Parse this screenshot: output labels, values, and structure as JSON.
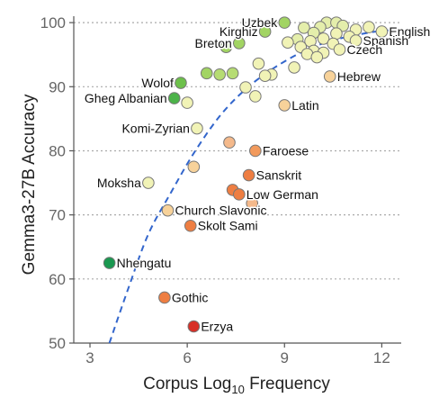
{
  "chart_data": {
    "type": "scatter",
    "title": "",
    "xlabel": "Corpus Log",
    "xlabel_sub": "10",
    "xlabel_suffix": " Frequency",
    "ylabel": "Gemma3-27B Accuracy",
    "xlim": [
      2.5,
      12.6
    ],
    "ylim": [
      50,
      101
    ],
    "xticks": [
      3,
      6,
      9,
      12
    ],
    "yticks": [
      50,
      60,
      70,
      80,
      90,
      100
    ],
    "grid": "horizontal dotted",
    "trend": {
      "style": "dashed",
      "color": "#3366cc",
      "points": [
        [
          3.6,
          50
        ],
        [
          4.2,
          58.8
        ],
        [
          4.8,
          67
        ],
        [
          5.5,
          73.5
        ],
        [
          6.2,
          79.6
        ],
        [
          7.0,
          85.4
        ],
        [
          7.8,
          89.6
        ],
        [
          8.7,
          93
        ],
        [
          9.7,
          95.8
        ],
        [
          10.7,
          97.5
        ],
        [
          11.8,
          98.6
        ],
        [
          12.2,
          98.8
        ]
      ]
    },
    "points": [
      {
        "x": 10.3,
        "y": 100,
        "color": "#e4eeab"
      },
      {
        "x": 10.6,
        "y": 100,
        "color": "#e4eeab"
      },
      {
        "x": 10.1,
        "y": 99.3,
        "color": "#e4eeab"
      },
      {
        "x": 10.8,
        "y": 99.5,
        "color": "#e4eeab"
      },
      {
        "x": 11.2,
        "y": 98.9,
        "color": "#f1f3b6"
      },
      {
        "x": 11.6,
        "y": 99.3,
        "color": "#f1f3b6"
      },
      {
        "x": 9.6,
        "y": 99.2,
        "color": "#e4eeab"
      },
      {
        "x": 9.9,
        "y": 98.4,
        "color": "#e4eeab"
      },
      {
        "x": 10.6,
        "y": 98.3,
        "color": "#f1f3b6"
      },
      {
        "x": 11.0,
        "y": 97.8,
        "color": "#f1f3b6"
      },
      {
        "x": 9.4,
        "y": 97.4,
        "color": "#e4eeab"
      },
      {
        "x": 9.8,
        "y": 97.1,
        "color": "#f1f3b6"
      },
      {
        "x": 10.2,
        "y": 97.5,
        "color": "#f1f3b6"
      },
      {
        "x": 10.5,
        "y": 96.7,
        "color": "#f1f3b6"
      },
      {
        "x": 9.1,
        "y": 96.9,
        "color": "#f1f3b6"
      },
      {
        "x": 9.5,
        "y": 96.2,
        "color": "#f1f3b6"
      },
      {
        "x": 9.9,
        "y": 95.6,
        "color": "#f1f3b6"
      },
      {
        "x": 10.2,
        "y": 95.3,
        "color": "#f1f3b6"
      },
      {
        "x": 9.7,
        "y": 95.1,
        "color": "#f1f3b6"
      },
      {
        "x": 10.0,
        "y": 94.6,
        "color": "#f1f3b6"
      },
      {
        "x": 8.2,
        "y": 93.6,
        "color": "#f1f3b6"
      },
      {
        "x": 9.3,
        "y": 93.0,
        "color": "#f1f3b6"
      },
      {
        "x": 8.6,
        "y": 91.9,
        "color": "#f1f3b6"
      },
      {
        "x": 8.4,
        "y": 91.7,
        "color": "#f1f3b6"
      },
      {
        "x": 7.0,
        "y": 91.9,
        "color": "#b6dc73"
      },
      {
        "x": 7.4,
        "y": 92.1,
        "color": "#b6dc73"
      },
      {
        "x": 6.6,
        "y": 92.1,
        "color": "#a2d463"
      },
      {
        "x": 7.8,
        "y": 89.9,
        "color": "#f1f3b6"
      },
      {
        "x": 8.1,
        "y": 88.5,
        "color": "#f1f3b6"
      },
      {
        "x": 6.0,
        "y": 87.5,
        "color": "#f1f3b6"
      },
      {
        "x": 7.3,
        "y": 81.3,
        "color": "#f4b98b"
      },
      {
        "x": 6.2,
        "y": 77.5,
        "color": "#f7d29a"
      },
      {
        "x": 8.0,
        "y": 71.8,
        "color": "#f4b98b"
      },
      {
        "x": 12.0,
        "y": 98.6,
        "color": "#f1f3b6",
        "label": "English",
        "label_pos": "right"
      },
      {
        "x": 9.0,
        "y": 100,
        "color": "#a2d463",
        "label": "Uzbek",
        "label_pos": "left"
      },
      {
        "x": 8.4,
        "y": 98.6,
        "color": "#a2d463",
        "label": "Kirghiz",
        "label_pos": "left"
      },
      {
        "x": 11.2,
        "y": 97.2,
        "color": "#f1f3b6",
        "label": "Spanish",
        "label_pos": "right"
      },
      {
        "x": 10.7,
        "y": 95.8,
        "color": "#f1f3b6",
        "label": "Czech",
        "label_pos": "right"
      },
      {
        "x": 7.6,
        "y": 96.8,
        "color": "#a2d463",
        "label": "Breton",
        "label_pos": "left"
      },
      {
        "x": 7.2,
        "y": 96.2,
        "color": "#a2d463",
        "label": "",
        "label_pos": "none"
      },
      {
        "x": 10.4,
        "y": 91.6,
        "color": "#f7d29a",
        "label": "Hebrew",
        "label_pos": "right"
      },
      {
        "x": 5.8,
        "y": 90.6,
        "color": "#6cc04a",
        "label": "Wolof",
        "label_pos": "left"
      },
      {
        "x": 5.6,
        "y": 88.2,
        "color": "#4cb349",
        "label": "Gheg Albanian",
        "label_pos": "left"
      },
      {
        "x": 9.0,
        "y": 87.1,
        "color": "#f7d29a",
        "label": "Latin",
        "label_pos": "right"
      },
      {
        "x": 6.3,
        "y": 83.5,
        "color": "#f1f3b6",
        "label": "Komi-Zyrian",
        "label_pos": "left"
      },
      {
        "x": 8.1,
        "y": 80.0,
        "color": "#f29a5c",
        "label": "Faroese",
        "label_pos": "right"
      },
      {
        "x": 7.9,
        "y": 76.2,
        "color": "#ee7e42",
        "label": "Sanskrit",
        "label_pos": "right"
      },
      {
        "x": 4.8,
        "y": 75.0,
        "color": "#f1f3b6",
        "label": "Moksha",
        "label_pos": "left"
      },
      {
        "x": 7.4,
        "y": 73.9,
        "color": "#ee7e42",
        "label": "",
        "label_pos": "none"
      },
      {
        "x": 7.6,
        "y": 73.2,
        "color": "#ee7e42",
        "label": "Low German",
        "label_pos": "right"
      },
      {
        "x": 5.4,
        "y": 70.7,
        "color": "#f7d29a",
        "label": "Church Slavonic",
        "label_pos": "right"
      },
      {
        "x": 6.1,
        "y": 68.3,
        "color": "#ee7e42",
        "label": "Skolt Sami",
        "label_pos": "right"
      },
      {
        "x": 3.6,
        "y": 62.5,
        "color": "#1a9850",
        "label": "Nhengatu",
        "label_pos": "right"
      },
      {
        "x": 5.3,
        "y": 57.1,
        "color": "#ee7e42",
        "label": "Gothic",
        "label_pos": "right"
      },
      {
        "x": 6.2,
        "y": 52.6,
        "color": "#d73027",
        "label": "Erzya",
        "label_pos": "right"
      }
    ]
  }
}
